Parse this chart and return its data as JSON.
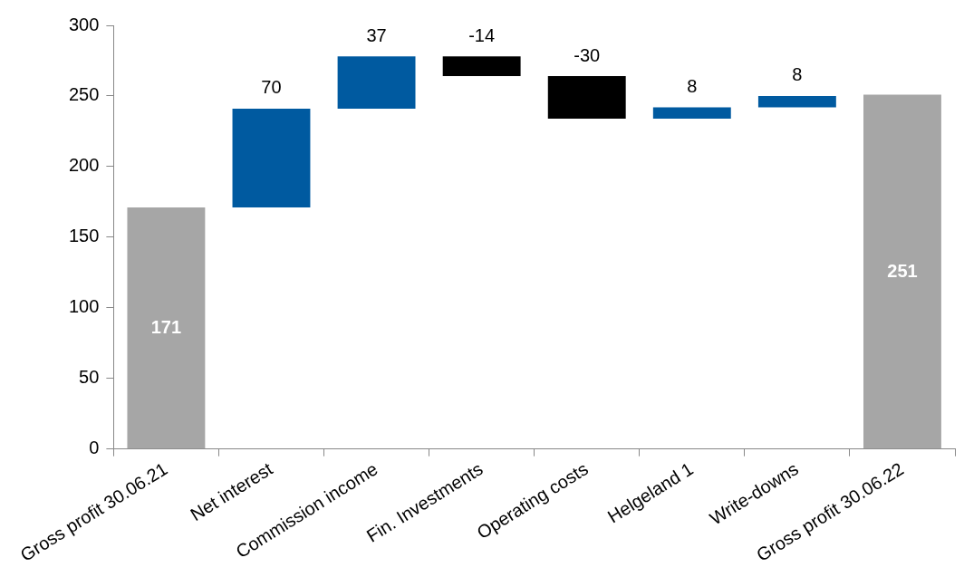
{
  "chart_data": {
    "type": "bar",
    "categories": [
      "Gross profit 30.06.21",
      "Net interest",
      "Commission income",
      "Fin. Investments",
      "Operating costs",
      "Helgeland 1",
      "Write-downs",
      "Gross profit 30.06.22"
    ],
    "values": [
      171,
      70,
      37,
      -14,
      -30,
      8,
      8,
      251
    ],
    "base": [
      0,
      171,
      241,
      278,
      264,
      234,
      242,
      0
    ],
    "colors": [
      "#a6a6a6",
      "#005aa0",
      "#005aa0",
      "#000000",
      "#000000",
      "#005aa0",
      "#005aa0",
      "#a6a6a6"
    ],
    "ylim": [
      0,
      300
    ],
    "yticks": [
      0,
      50,
      100,
      150,
      200,
      250,
      300
    ],
    "grid": false,
    "legend": false,
    "data_labels": true
  }
}
